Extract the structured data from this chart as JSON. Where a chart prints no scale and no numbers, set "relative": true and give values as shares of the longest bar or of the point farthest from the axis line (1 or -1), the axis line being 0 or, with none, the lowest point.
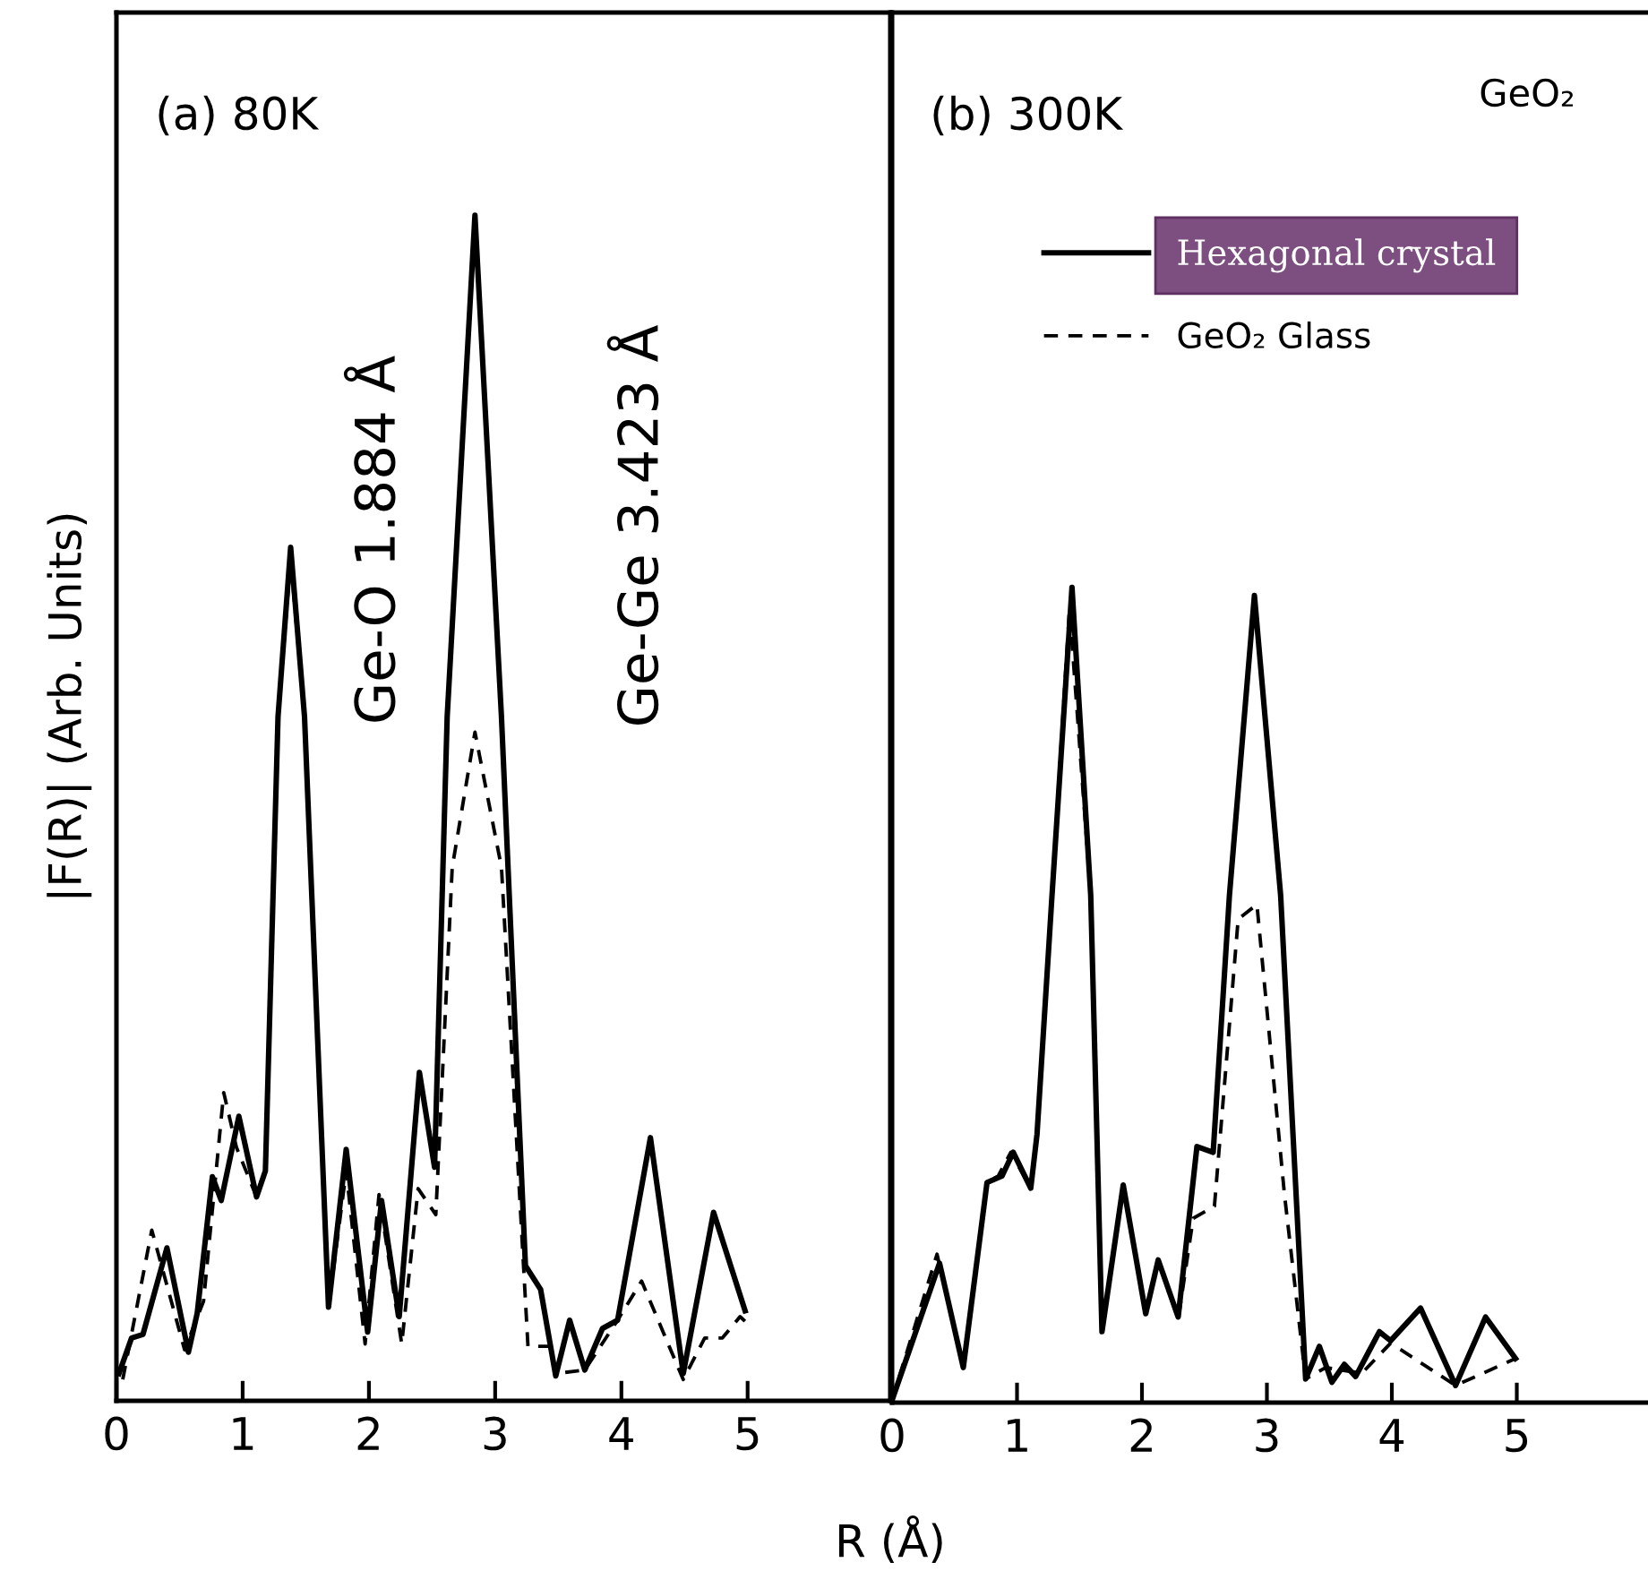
{
  "chart_data": [
    {
      "type": "line",
      "title": "(a) 80K",
      "ylabel": "|F(R)| (Arb. Units)",
      "xlabel": "R (Å)",
      "relative": true,
      "xlim": [
        0,
        6.13
      ],
      "xticks": [
        0,
        1,
        2,
        3,
        4,
        5
      ],
      "tick_labels": "x",
      "grid": false,
      "legend": false,
      "annotations": [
        "Ge-O 1.884 Å",
        "Ge-Ge 3.423 Å"
      ],
      "series": [
        {
          "color": "#000000",
          "line_style": "solid",
          "x": [
            0.02,
            0.12,
            0.21,
            0.4,
            0.57,
            0.64,
            0.76,
            0.83,
            0.97,
            1.11,
            1.18,
            1.28,
            1.38,
            1.49,
            1.68,
            1.82,
            1.99,
            2.1,
            2.24,
            2.4,
            2.52,
            2.62,
            2.84,
            3.05,
            3.24,
            3.36,
            3.48,
            3.59,
            3.71,
            3.85,
            3.97,
            4.23,
            4.49,
            4.73,
            4.98
          ],
          "values": [
            0.023,
            0.053,
            0.056,
            0.129,
            0.041,
            0.074,
            0.189,
            0.169,
            0.24,
            0.172,
            0.194,
            0.577,
            0.72,
            0.577,
            0.079,
            0.212,
            0.058,
            0.169,
            0.071,
            0.277,
            0.197,
            0.577,
            1.0,
            0.577,
            0.114,
            0.094,
            0.021,
            0.068,
            0.026,
            0.061,
            0.068,
            0.222,
            0.023,
            0.159,
            0.076
          ]
        },
        {
          "color": "#000000",
          "line_style": "dashed",
          "x": [
            0.05,
            0.28,
            0.54,
            0.69,
            0.85,
            0.95,
            1.11,
            1.18,
            1.28,
            1.38,
            1.49,
            1.68,
            1.82,
            1.97,
            2.08,
            2.26,
            2.39,
            2.53,
            2.66,
            2.84,
            3.05,
            3.26,
            3.43,
            3.48,
            3.71,
            3.97,
            4.16,
            4.49,
            4.66,
            4.8,
            4.94,
            4.99
          ],
          "values": [
            0.018,
            0.144,
            0.043,
            0.084,
            0.26,
            0.214,
            0.172,
            0.194,
            0.577,
            0.71,
            0.577,
            0.079,
            0.194,
            0.048,
            0.174,
            0.048,
            0.179,
            0.157,
            0.45,
            0.564,
            0.45,
            0.046,
            0.046,
            0.023,
            0.026,
            0.068,
            0.101,
            0.018,
            0.053,
            0.053,
            0.071,
            0.066
          ]
        }
      ]
    },
    {
      "type": "line",
      "title": "(b) 300K",
      "relative": true,
      "xlim": [
        0,
        6.05
      ],
      "xticks": [
        0,
        1,
        2,
        3,
        4,
        5
      ],
      "tick_labels": "x",
      "grid": false,
      "legend": "top",
      "annotations": [
        "GeO₂"
      ],
      "series": [
        {
          "name": "Hexagonal crystal",
          "color": "#000000",
          "line_style": "solid",
          "x": [
            0,
            0.38,
            0.57,
            0.76,
            0.88,
            0.97,
            1.11,
            1.16,
            1.28,
            1.44,
            1.59,
            1.68,
            1.85,
            2.03,
            2.13,
            2.29,
            2.44,
            2.57,
            2.7,
            2.9,
            3.11,
            3.31,
            3.42,
            3.52,
            3.62,
            3.71,
            3.9,
            3.99,
            4.23,
            4.51,
            4.75,
            4.99
          ],
          "values": [
            0.003,
            0.171,
            0.043,
            0.27,
            0.278,
            0.307,
            0.263,
            0.329,
            0.622,
            1.0,
            0.622,
            0.087,
            0.267,
            0.109,
            0.175,
            0.105,
            0.314,
            0.307,
            0.622,
            0.99,
            0.622,
            0.029,
            0.069,
            0.025,
            0.047,
            0.032,
            0.087,
            0.076,
            0.116,
            0.021,
            0.105,
            0.054
          ]
        },
        {
          "name": "GeO₂ Glass",
          "color": "#000000",
          "line_style": "dashed",
          "x": [
            0,
            0.36,
            0.57,
            0.76,
            0.85,
            0.95,
            1.11,
            1.16,
            1.28,
            1.42,
            1.59,
            1.68,
            1.85,
            2.03,
            2.13,
            2.29,
            2.41,
            2.58,
            2.77,
            2.92,
            3.14,
            3.31,
            3.47,
            3.76,
            3.99,
            4.51,
            4.99
          ],
          "values": [
            0.003,
            0.182,
            0.043,
            0.27,
            0.278,
            0.307,
            0.263,
            0.329,
            0.622,
            0.974,
            0.622,
            0.087,
            0.267,
            0.109,
            0.175,
            0.102,
            0.226,
            0.241,
            0.593,
            0.611,
            0.256,
            0.029,
            0.043,
            0.036,
            0.073,
            0.021,
            0.054
          ]
        }
      ]
    }
  ]
}
